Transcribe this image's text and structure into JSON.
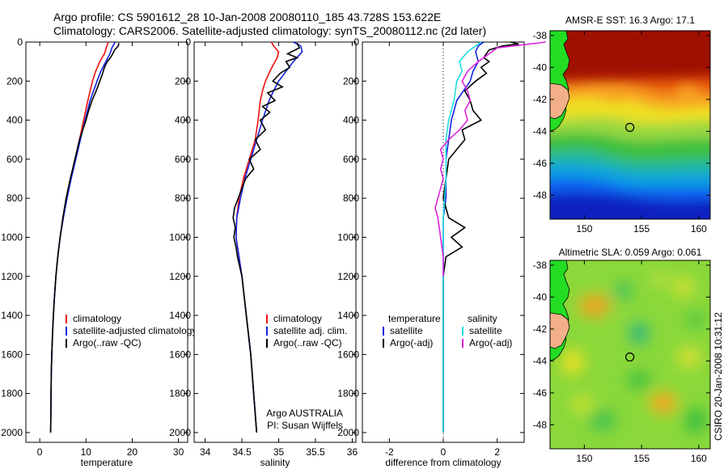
{
  "header": {
    "line1": "Argo profile: CS 5901612_28 10-Jan-2008 20080110_185 43.728S 153.622E",
    "line2": "Climatology: CARS2006. Satellite-adjusted climatology: synTS_20080112.nc (2d later)"
  },
  "colors": {
    "climatology": "#ee1111",
    "satellite": "#1122dd",
    "argo": "#000000",
    "sat_salinity": "#22dddd",
    "argo_salinity": "#dd22dd"
  },
  "chart_data": [
    {
      "type": "line",
      "xlabel": "temperature",
      "xlim": [
        -3,
        32
      ],
      "ylim": [
        2050,
        0
      ],
      "xticks": [
        0,
        10,
        20,
        30
      ],
      "yticks": [
        0,
        200,
        400,
        600,
        800,
        1000,
        1200,
        1400,
        1600,
        1800,
        2000
      ],
      "legend_placement": "lower-right",
      "series": [
        {
          "name": "climatology",
          "color": "#ee1111",
          "y": [
            0,
            30,
            60,
            100,
            150,
            200,
            300,
            400,
            500,
            600,
            700,
            800,
            900,
            1000,
            1100,
            1200,
            1300,
            1400,
            1500,
            1600,
            1700,
            1800,
            1900,
            2000
          ],
          "x": [
            14.8,
            14.4,
            14.0,
            13.0,
            12.1,
            11.4,
            10.4,
            9.5,
            8.6,
            7.7,
            6.7,
            5.8,
            5.1,
            4.4,
            3.9,
            3.5,
            3.2,
            2.95,
            2.75,
            2.6,
            2.5,
            2.45,
            2.4,
            2.35
          ]
        },
        {
          "name": "satellite-adjusted climatology",
          "color": "#1122dd",
          "y": [
            0,
            30,
            60,
            100,
            150,
            200,
            300,
            400,
            500,
            600,
            700,
            800,
            900,
            1000,
            1100,
            1200,
            1300,
            1400,
            1500,
            1600,
            1700,
            1800,
            1900,
            2000
          ],
          "x": [
            16.3,
            15.6,
            15.2,
            14.3,
            13.2,
            12.4,
            10.9,
            9.8,
            8.8,
            7.8,
            6.8,
            5.9,
            5.1,
            4.4,
            3.9,
            3.5,
            3.2,
            2.95,
            2.75,
            2.6,
            2.5,
            2.45,
            2.4,
            2.35
          ]
        },
        {
          "name": "Argo(..raw -QC)",
          "color": "#000000",
          "y": [
            5,
            20,
            40,
            60,
            80,
            100,
            130,
            160,
            200,
            250,
            300,
            350,
            400,
            450,
            500,
            600,
            700,
            800,
            900,
            1000,
            1100,
            1200,
            1300,
            1400,
            1500,
            1600,
            1700,
            1800,
            1900,
            2000
          ],
          "x": [
            17.1,
            17.0,
            16.2,
            15.8,
            15.3,
            14.6,
            14.0,
            13.6,
            13.0,
            12.2,
            11.3,
            10.6,
            10.0,
            9.3,
            8.6,
            7.6,
            6.6,
            5.7,
            5.0,
            4.4,
            3.9,
            3.5,
            3.2,
            2.95,
            2.75,
            2.6,
            2.5,
            2.45,
            2.4,
            2.35
          ]
        }
      ]
    },
    {
      "type": "line",
      "xlabel": "salinity",
      "xlim": [
        33.85,
        36.05
      ],
      "ylim": [
        2050,
        0
      ],
      "xticks": [
        34,
        34.5,
        35,
        35.5,
        36
      ],
      "yticks": [
        0,
        200,
        400,
        600,
        800,
        1000,
        1200,
        1400,
        1600,
        1800,
        2000
      ],
      "legend_placement": "lower-right",
      "annotation": [
        "Argo AUSTRALIA",
        "PI: Susan Wijffels"
      ],
      "series": [
        {
          "name": "climatology",
          "color": "#ee1111",
          "y": [
            0,
            20,
            50,
            80,
            100,
            150,
            200,
            250,
            300,
            400,
            500,
            600,
            700,
            800,
            900,
            1000,
            1100,
            1200,
            1400,
            1600,
            1800,
            2000
          ],
          "x": [
            34.9,
            34.93,
            35.0,
            34.98,
            34.95,
            34.88,
            34.82,
            34.78,
            34.75,
            34.72,
            34.68,
            34.6,
            34.52,
            34.46,
            34.43,
            34.42,
            34.46,
            34.5,
            34.56,
            34.62,
            34.66,
            34.7
          ]
        },
        {
          "name": "satellite adj. clim.",
          "color": "#1122dd",
          "y": [
            0,
            20,
            50,
            100,
            150,
            200,
            250,
            300,
            400,
            500,
            600,
            700,
            800,
            900,
            1000,
            1100,
            1200,
            1400,
            1600,
            1800,
            2000
          ],
          "x": [
            35.2,
            35.3,
            35.32,
            35.2,
            35.1,
            35.0,
            34.93,
            34.87,
            34.78,
            34.7,
            34.62,
            34.54,
            34.48,
            34.43,
            34.42,
            34.46,
            34.5,
            34.56,
            34.62,
            34.66,
            34.7
          ]
        },
        {
          "name": "Argo(..raw -QC)",
          "color": "#000000",
          "y": [
            5,
            30,
            60,
            80,
            100,
            130,
            160,
            200,
            230,
            260,
            300,
            330,
            360,
            400,
            450,
            500,
            550,
            600,
            650,
            700,
            750,
            800,
            850,
            900,
            950,
            1000,
            1050,
            1100,
            1200,
            1400,
            1600,
            1800,
            2000
          ],
          "x": [
            35.25,
            35.28,
            35.12,
            35.25,
            35.1,
            35.15,
            35.02,
            34.92,
            35.05,
            34.85,
            34.95,
            34.78,
            34.88,
            34.75,
            34.82,
            34.68,
            34.75,
            34.6,
            34.66,
            34.55,
            34.5,
            34.45,
            34.4,
            34.38,
            34.41,
            34.39,
            34.42,
            34.44,
            34.5,
            34.56,
            34.62,
            34.66,
            34.7
          ]
        }
      ]
    },
    {
      "type": "line",
      "xlabel": "difference from climatology",
      "xlim": [
        -3,
        3
      ],
      "ylim": [
        2050,
        0
      ],
      "xticks": [
        -2,
        0,
        2
      ],
      "yticks": [
        0,
        200,
        400,
        600,
        800,
        1000,
        1200,
        1400,
        1600,
        1800,
        2000
      ],
      "legend_placement": "lower-left",
      "legend_headers": [
        "temperature",
        "salinity"
      ],
      "series": [
        {
          "name": "satellite",
          "group": "temperature",
          "color": "#1122dd",
          "y": [
            0,
            20,
            50,
            100,
            150,
            200,
            300,
            400,
            500,
            600,
            700,
            800,
            900,
            1000,
            1100,
            1200,
            1400,
            1600,
            1800,
            2000
          ],
          "x": [
            1.5,
            1.3,
            1.2,
            1.3,
            1.1,
            1.0,
            0.5,
            0.3,
            0.2,
            0.1,
            0.1,
            0.1,
            0.0,
            0.0,
            0.0,
            0.0,
            0.0,
            0.0,
            0.0,
            0.0
          ]
        },
        {
          "name": "Argo(-adj)",
          "group": "temperature",
          "color": "#000000",
          "y": [
            0,
            10,
            20,
            40,
            60,
            80,
            100,
            130,
            160,
            200,
            250,
            300,
            350,
            400,
            450,
            500,
            550,
            600,
            700,
            800,
            900,
            950,
            1000,
            1050,
            1100,
            1200,
            1300,
            1400,
            1600,
            1800,
            2000
          ],
          "x": [
            2.5,
            2.8,
            2.2,
            1.7,
            1.6,
            1.5,
            1.7,
            1.4,
            1.6,
            1.2,
            0.8,
            1.0,
            1.1,
            1.4,
            0.7,
            0.8,
            0.5,
            0.2,
            0.1,
            0.0,
            0.2,
            0.8,
            0.3,
            0.7,
            0.1,
            0.0,
            0.0,
            0.0,
            0.0,
            0.0,
            0.0
          ]
        },
        {
          "name": "satellite",
          "group": "salinity",
          "color": "#22dddd",
          "y": [
            0,
            20,
            50,
            100,
            150,
            200,
            300,
            400,
            500,
            600,
            700,
            800,
            900,
            1000,
            1100,
            1200,
            1400,
            1600,
            1800,
            2000
          ],
          "x": [
            1.4,
            1.2,
            0.9,
            0.6,
            0.7,
            0.5,
            0.4,
            0.2,
            0.1,
            0.1,
            0.1,
            0.05,
            0.0,
            0.0,
            0.0,
            0.0,
            0.0,
            0.0,
            0.0,
            0.0
          ]
        },
        {
          "name": "Argo(-adj)",
          "group": "salinity",
          "color": "#dd22dd",
          "y": [
            0,
            30,
            60,
            100,
            150,
            200,
            250,
            300,
            350,
            400,
            450,
            500,
            550,
            600,
            650,
            700,
            800,
            850,
            900,
            1000,
            1100,
            1200
          ],
          "x": [
            3.8,
            2.0,
            1.7,
            1.3,
            0.9,
            0.7,
            0.9,
            1.0,
            0.8,
            0.9,
            0.6,
            0.2,
            -0.1,
            0.0,
            -0.1,
            0.0,
            -0.2,
            -0.3,
            -0.2,
            -0.1,
            0.0,
            0.0
          ]
        }
      ]
    },
    {
      "type": "heatmap",
      "title": "AMSR-E SST: 16.3 Argo: 17.1",
      "xlim": [
        147,
        161
      ],
      "ylim": [
        -49.5,
        -37.7
      ],
      "xticks": [
        150,
        155,
        160
      ],
      "yticks": [
        -38,
        -40,
        -42,
        -44,
        -46,
        -48
      ],
      "marker": {
        "lon": 153.6,
        "lat": -43.7
      }
    },
    {
      "type": "heatmap",
      "title": "Altimetric SLA: 0.059 Argo: 0.061",
      "xlim": [
        147,
        161
      ],
      "ylim": [
        -49.5,
        -37.7
      ],
      "xticks": [
        150,
        155,
        160
      ],
      "yticks": [
        -38,
        -40,
        -42,
        -44,
        -46,
        -48
      ],
      "marker": {
        "lon": 153.6,
        "lat": -43.7
      },
      "side_label": "CSIRO 20-Jan-2008 10:31:12"
    }
  ]
}
